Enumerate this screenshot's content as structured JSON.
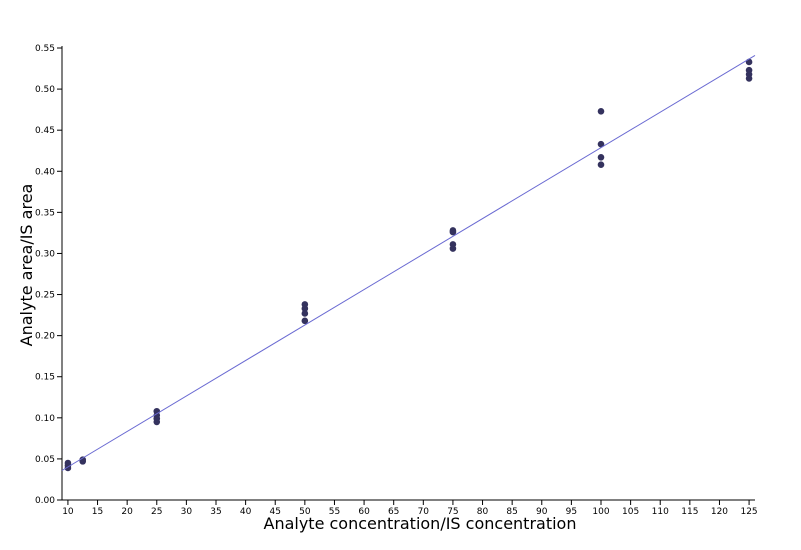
{
  "chart_data": {
    "type": "scatter",
    "xlabel": "Analyte concentration/IS concentration",
    "ylabel": "Analyte area/IS area",
    "xlim": [
      9,
      126
    ],
    "ylim": [
      0,
      0.55
    ],
    "xticks": [
      10,
      15,
      20,
      25,
      30,
      35,
      40,
      45,
      50,
      55,
      60,
      65,
      70,
      75,
      80,
      85,
      90,
      95,
      100,
      105,
      110,
      115,
      120,
      125
    ],
    "yticks": [
      {
        "value": 0,
        "label": "0.00"
      },
      0.05,
      {
        "value": 0.1,
        "label": "0.10"
      },
      0.15,
      {
        "value": 0.2,
        "label": "0.20"
      },
      0.25,
      {
        "value": 0.3,
        "label": "0.30"
      },
      0.35,
      {
        "value": 0.4,
        "label": "0.40"
      },
      0.45,
      {
        "value": 0.5,
        "label": "0.50"
      },
      0.55
    ],
    "series": [
      {
        "type": "scatter",
        "color": "#34325e",
        "x": [
          10,
          10,
          10,
          12.5,
          12.5,
          25,
          25,
          25,
          25,
          50,
          50,
          50,
          50,
          75,
          75,
          75,
          75,
          100,
          100,
          100,
          100,
          125,
          125,
          125,
          125
        ],
        "values": [
          0.045,
          0.042,
          0.039,
          0.049,
          0.047,
          0.108,
          0.103,
          0.099,
          0.095,
          0.238,
          0.233,
          0.227,
          0.218,
          0.328,
          0.326,
          0.311,
          0.306,
          0.473,
          0.433,
          0.417,
          0.408,
          0.533,
          0.523,
          0.518,
          0.513
        ]
      },
      {
        "type": "line",
        "color": "#6a6ad2",
        "x": [
          9,
          126
        ],
        "values": [
          0.0359,
          0.541
        ]
      }
    ]
  }
}
